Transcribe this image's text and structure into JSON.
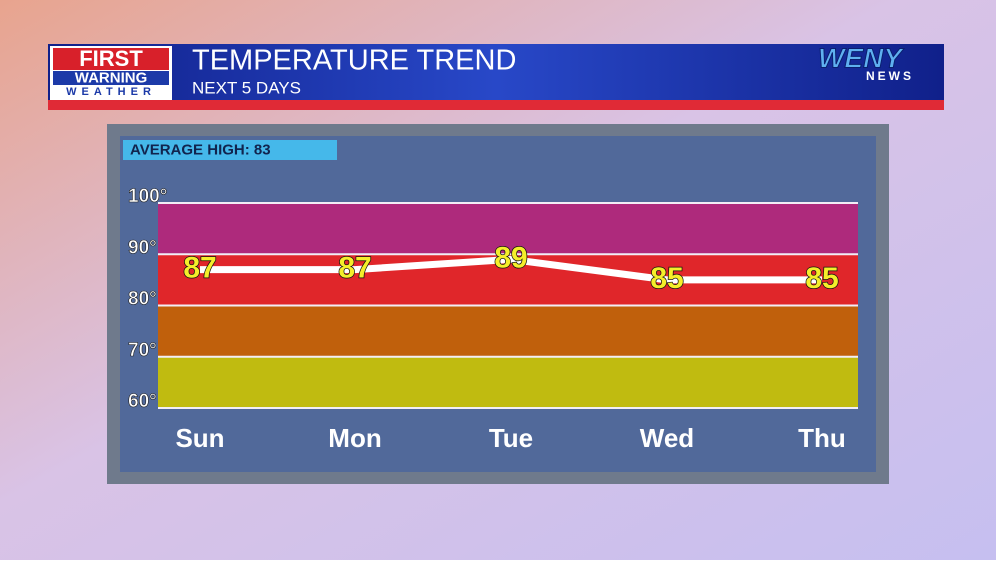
{
  "branding": {
    "first": "FIRST",
    "warning": "WARNING",
    "weather": "WEATHER",
    "station": "WENY",
    "news": "NEWS"
  },
  "chart_data": {
    "type": "line",
    "title": "TEMPERATURE TREND",
    "subtitle": "NEXT 5 DAYS",
    "annotation": "AVERAGE HIGH: 83",
    "categories": [
      "Sun",
      "Mon",
      "Tue",
      "Wed",
      "Thu"
    ],
    "values": [
      87,
      87,
      89,
      85,
      85
    ],
    "color": "#ffffff",
    "label_color": "#f5ee2a",
    "ylim": [
      60,
      100
    ],
    "yticks": [
      {
        "value": 60,
        "label": "60°"
      },
      {
        "value": 70,
        "label": "70°"
      },
      {
        "value": 80,
        "label": "80°"
      },
      {
        "value": 90,
        "label": "90°"
      },
      {
        "value": 100,
        "label": "100°"
      }
    ],
    "grid": true,
    "bands": [
      {
        "from": 60,
        "to": 70,
        "color": "#c0bb10"
      },
      {
        "from": 70,
        "to": 80,
        "color": "#c0600c"
      },
      {
        "from": 80,
        "to": 90,
        "color": "#e0262a"
      },
      {
        "from": 90,
        "to": 100,
        "color": "#ae2a7c"
      }
    ]
  }
}
